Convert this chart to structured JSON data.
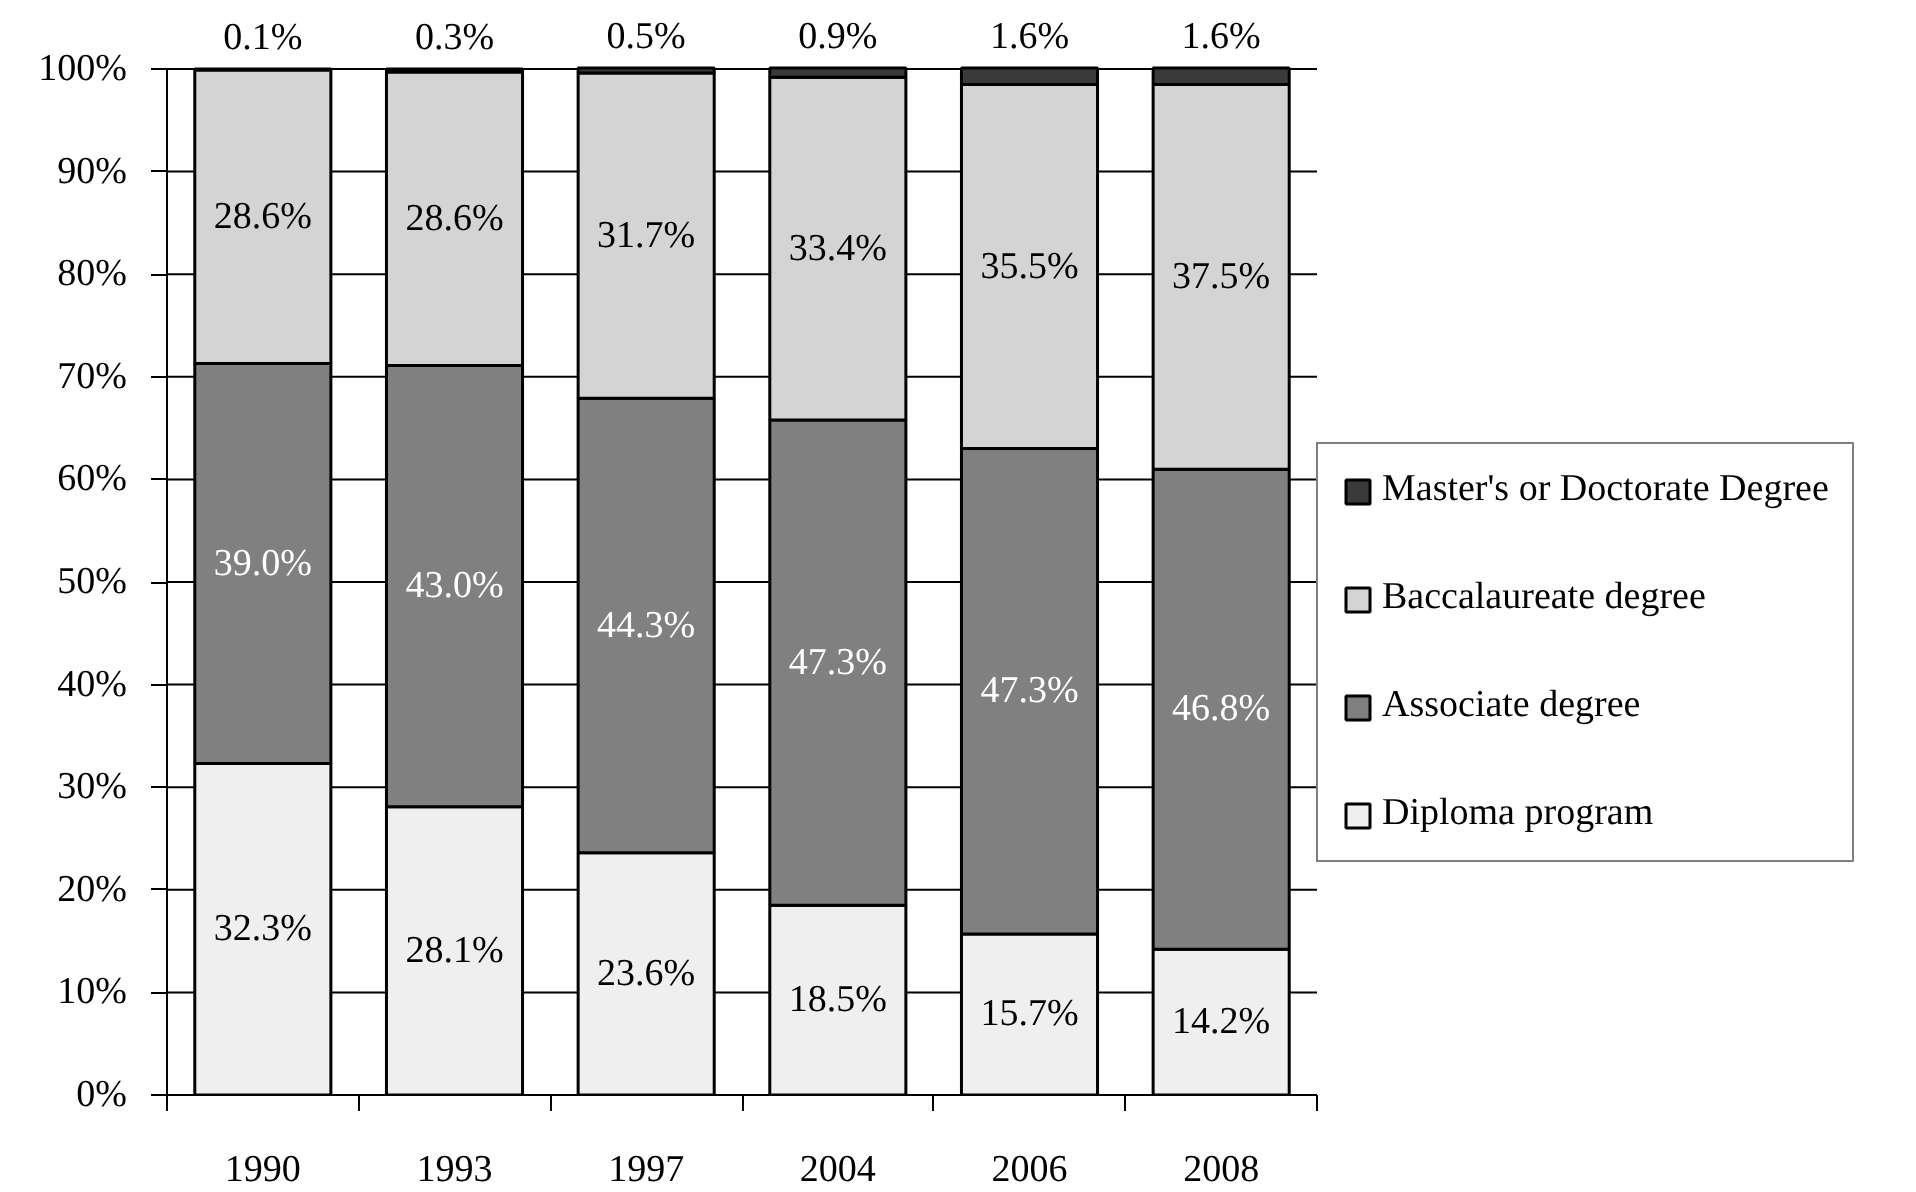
{
  "chart_data": {
    "type": "bar",
    "stacked": true,
    "categories": [
      "1990",
      "1993",
      "1997",
      "2004",
      "2006",
      "2008"
    ],
    "series": [
      {
        "name": "Diploma program",
        "color": "#efefef",
        "values": [
          32.3,
          28.1,
          23.6,
          18.5,
          15.7,
          14.2
        ],
        "value_labels": [
          "32.3%",
          "28.1%",
          "23.6%",
          "18.5%",
          "15.7%",
          "14.2%"
        ]
      },
      {
        "name": "Associate degree",
        "color": "#808080",
        "values": [
          39.0,
          43.0,
          44.3,
          47.3,
          47.3,
          46.8
        ],
        "value_labels": [
          "39.0%",
          "43.0%",
          "44.3%",
          "47.3%",
          "47.3%",
          "46.8%"
        ]
      },
      {
        "name": "Baccalaureate degree",
        "color": "#d4d4d4",
        "values": [
          28.6,
          28.6,
          31.7,
          33.4,
          35.5,
          37.5
        ],
        "value_labels": [
          "28.6%",
          "28.6%",
          "31.7%",
          "33.4%",
          "35.5%",
          "37.5%"
        ]
      },
      {
        "name": "Master's or Doctorate Degree",
        "color": "#3a3a3a",
        "values": [
          0.1,
          0.3,
          0.5,
          0.9,
          1.6,
          1.6
        ],
        "value_labels": [
          "0.1%",
          "0.3%",
          "0.5%",
          "0.9%",
          "1.6%",
          "1.6%"
        ]
      }
    ],
    "ylim": [
      0,
      100
    ],
    "yticks": [
      {
        "value": 0,
        "label": "0%"
      },
      {
        "value": 10,
        "label": "10%"
      },
      {
        "value": 20,
        "label": "20%"
      },
      {
        "value": 30,
        "label": "30%"
      },
      {
        "value": 40,
        "label": "40%"
      },
      {
        "value": 50,
        "label": "50%"
      },
      {
        "value": 60,
        "label": "60%"
      },
      {
        "value": 70,
        "label": "70%"
      },
      {
        "value": 80,
        "label": "80%"
      },
      {
        "value": 90,
        "label": "90%"
      },
      {
        "value": 100,
        "label": "100%"
      }
    ],
    "grid": "y",
    "legend": "right"
  }
}
